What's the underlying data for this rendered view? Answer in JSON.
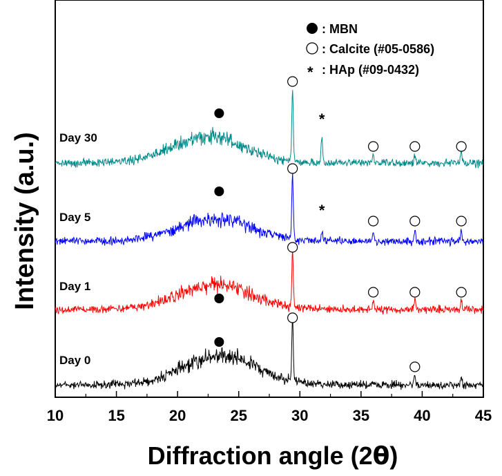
{
  "chart_data": {
    "type": "line",
    "xlabel_main": "Diffraction angle (2",
    "xlabel_theta": "θ",
    "xlabel_close": ")",
    "ylabel": "Intensity (a.u.)",
    "xlim": [
      10,
      45
    ],
    "x_ticks": [
      "10",
      "15",
      "20",
      "25",
      "30",
      "35",
      "40",
      "45"
    ],
    "legend": [
      {
        "marker": "filled-circle",
        "label": ": MBN"
      },
      {
        "marker": "open-circle",
        "label": ": Calcite (#05-0586)"
      },
      {
        "marker": "asterisk",
        "label": ": HAp (#09-0432)"
      }
    ],
    "series": [
      {
        "name": "Day 0",
        "color": "#000000",
        "amorphous_hump_center": 23.5,
        "peaks": [
          [
            29.4,
            "strong"
          ],
          [
            39.4,
            "weak"
          ],
          [
            43.2,
            "weak"
          ]
        ],
        "markers": [
          {
            "type": "filled-circle",
            "x": 23.4
          },
          {
            "type": "open-circle",
            "x": 29.4
          },
          {
            "type": "open-circle",
            "x": 39.4
          }
        ]
      },
      {
        "name": "Day 1",
        "color": "#ff0000",
        "amorphous_hump_center": 23.0,
        "peaks": [
          [
            29.4,
            "strong"
          ],
          [
            36.0,
            "weak"
          ],
          [
            39.4,
            "weak"
          ],
          [
            43.2,
            "weak"
          ]
        ],
        "markers": [
          {
            "type": "filled-circle",
            "x": 23.4
          },
          {
            "type": "open-circle",
            "x": 29.4
          },
          {
            "type": "open-circle",
            "x": 36.0
          },
          {
            "type": "open-circle",
            "x": 39.4
          },
          {
            "type": "open-circle",
            "x": 43.2
          }
        ]
      },
      {
        "name": "Day 5",
        "color": "#0000ff",
        "amorphous_hump_center": 23.0,
        "peaks": [
          [
            29.4,
            "strong"
          ],
          [
            31.8,
            "weak"
          ],
          [
            36.0,
            "weak"
          ],
          [
            39.4,
            "weak"
          ],
          [
            43.2,
            "weak"
          ]
        ],
        "markers": [
          {
            "type": "filled-circle",
            "x": 23.4
          },
          {
            "type": "open-circle",
            "x": 29.4
          },
          {
            "type": "asterisk",
            "x": 31.8
          },
          {
            "type": "open-circle",
            "x": 36.0
          },
          {
            "type": "open-circle",
            "x": 39.4
          },
          {
            "type": "open-circle",
            "x": 43.2
          }
        ]
      },
      {
        "name": "Day 30",
        "color": "#008b8b",
        "amorphous_hump_center": 22.5,
        "peaks": [
          [
            29.4,
            "strong"
          ],
          [
            31.8,
            "medium"
          ],
          [
            36.0,
            "weak"
          ],
          [
            39.4,
            "weak"
          ],
          [
            43.2,
            "weak"
          ]
        ],
        "markers": [
          {
            "type": "filled-circle",
            "x": 23.4
          },
          {
            "type": "open-circle",
            "x": 29.4
          },
          {
            "type": "asterisk",
            "x": 31.8
          },
          {
            "type": "open-circle",
            "x": 36.0
          },
          {
            "type": "open-circle",
            "x": 39.4
          },
          {
            "type": "open-circle",
            "x": 43.2
          }
        ]
      }
    ]
  }
}
